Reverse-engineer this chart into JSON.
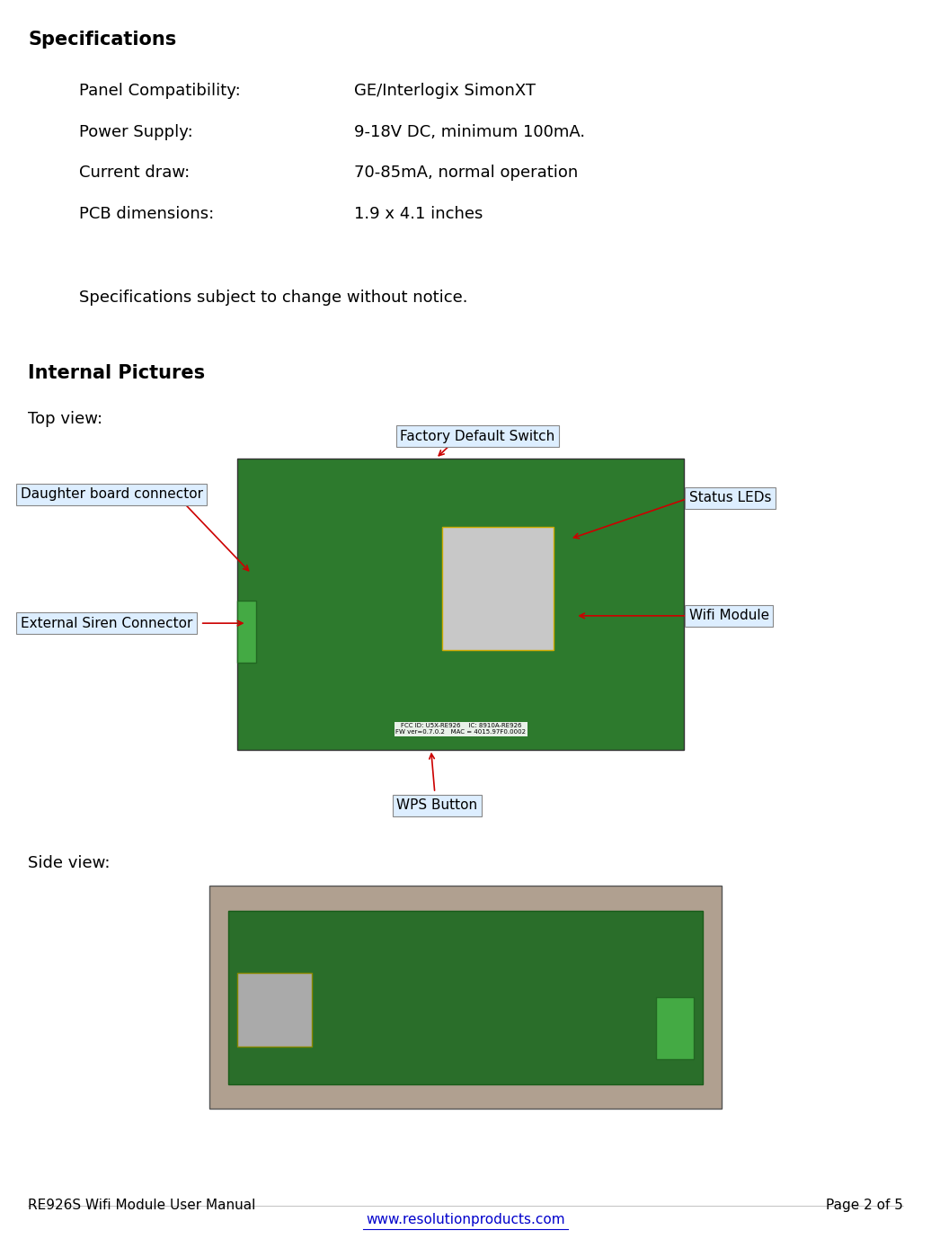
{
  "title": "Specifications",
  "specs": [
    {
      "label": "Panel Compatibility:",
      "value": "GE/Interlogix SimonXT"
    },
    {
      "label": "Power Supply:",
      "value": "9-18V DC, minimum 100mA."
    },
    {
      "label": "Current draw:",
      "value": "70-85mA, normal operation"
    },
    {
      "label": "PCB dimensions:",
      "value": "1.9 x 4.1 inches"
    }
  ],
  "note": "Specifications subject to change without notice.",
  "section2": "Internal Pictures",
  "top_view_label": "Top view:",
  "side_view_label": "Side view:",
  "footer_left": "RE926S Wifi Module User Manual",
  "footer_right": "Page 2 of 5",
  "footer_url": "www.resolutionproducts.com",
  "bg_color": "#ffffff",
  "text_color": "#000000",
  "label_box_color": "#ddeeff",
  "label_box_edge": "#888888",
  "arrow_color": "#cc0000",
  "font_size_body": 13,
  "font_size_title": 15,
  "font_size_footer": 11,
  "font_size_annot": 11
}
